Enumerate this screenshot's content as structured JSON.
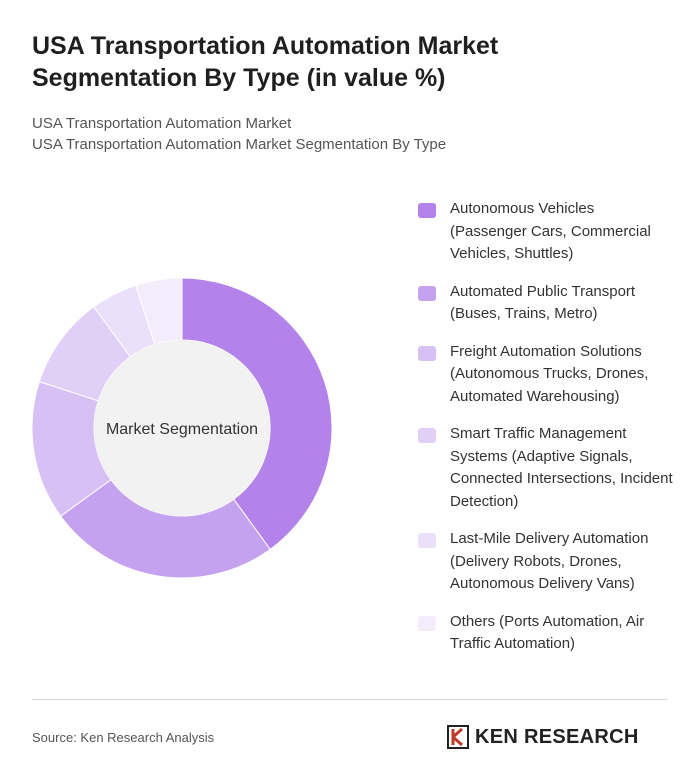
{
  "title": "USA Transportation Automation Market Segmentation By Type (in value %)",
  "subtitle_line1": "USA Transportation Automation Market",
  "subtitle_line2": "USA Transportation Automation Market Segmentation By Type",
  "source": "Source: Ken Research Analysis",
  "brand": "KEN RESEARCH",
  "chart_data": {
    "type": "pie",
    "center_label": "Market Segmentation",
    "categories": [
      "Autonomous Vehicles (Passenger Cars, Commercial Vehicles, Shuttles)",
      "Automated Public Transport (Buses, Trains, Metro)",
      "Freight Automation Solutions (Autonomous Trucks, Drones, Automated Warehousing)",
      "Smart Traffic Management Systems (Adaptive Signals, Connected Intersections, Incident Detection)",
      "Last-Mile Delivery Automation (Delivery Robots, Drones, Autonomous Delivery Vans)",
      "Others (Ports Automation, Air Traffic Automation)"
    ],
    "values": [
      40,
      25,
      15,
      10,
      5,
      5
    ],
    "colors": [
      "#b383eb",
      "#c4a2ef",
      "#d6c0f4",
      "#e0cff6",
      "#ebe0f9",
      "#f3ecfb"
    ],
    "legend_position": "right"
  }
}
